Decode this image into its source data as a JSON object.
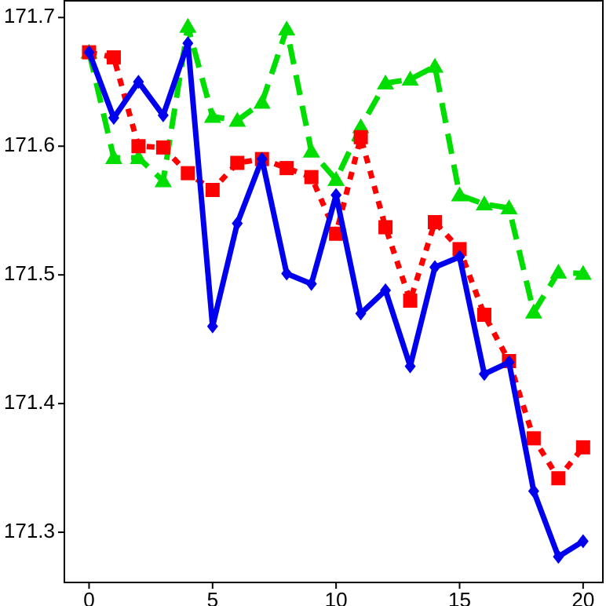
{
  "chart_data": {
    "type": "line",
    "x": [
      0,
      1,
      2,
      3,
      4,
      5,
      6,
      7,
      8,
      9,
      10,
      11,
      12,
      13,
      14,
      15,
      16,
      17,
      18,
      19,
      20
    ],
    "series": [
      {
        "color": "#00dd00",
        "marker": "triangle",
        "dash": "dashed",
        "values": [
          171.673,
          171.591,
          171.591,
          171.573,
          171.693,
          171.623,
          171.62,
          171.634,
          171.691,
          171.596,
          171.574,
          171.615,
          171.649,
          171.652,
          171.662,
          171.562,
          171.555,
          171.552,
          171.471,
          171.502,
          171.501
        ]
      },
      {
        "color": "#ff0000",
        "marker": "square",
        "dash": "dotted",
        "values": [
          171.673,
          171.669,
          171.6,
          171.599,
          171.579,
          171.566,
          171.587,
          171.59,
          171.583,
          171.576,
          171.532,
          171.607,
          171.537,
          171.48,
          171.541,
          171.52,
          171.469,
          171.433,
          171.373,
          171.342,
          171.366
        ]
      },
      {
        "color": "#0000ee",
        "marker": "diamond",
        "dash": "solid",
        "values": [
          171.673,
          171.622,
          171.65,
          171.624,
          171.68,
          171.46,
          171.54,
          171.59,
          171.501,
          171.493,
          171.562,
          171.47,
          171.488,
          171.429,
          171.506,
          171.514,
          171.423,
          171.432,
          171.332,
          171.281,
          171.293
        ]
      }
    ],
    "xlim": [
      -1,
      20.8
    ],
    "xticks": [
      0,
      5,
      10,
      15,
      20
    ],
    "ylim": [
      171.261,
      171.713
    ],
    "yticks": [
      171.3,
      171.4,
      171.5,
      171.6,
      171.7
    ],
    "grid": false
  }
}
